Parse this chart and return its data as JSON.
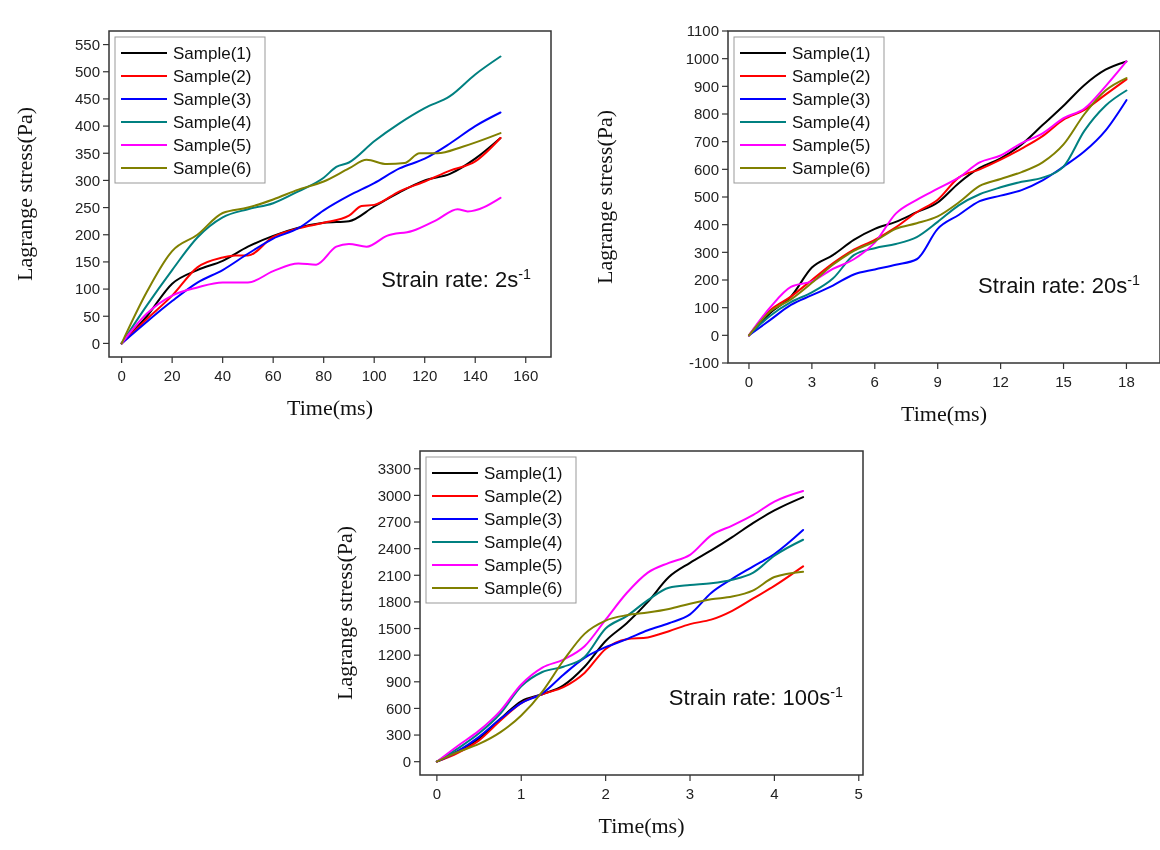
{
  "chart_data": [
    {
      "type": "line",
      "xlabel": "Time(ms)",
      "ylabel": "Lagrange stress(Pa)",
      "annotations": [
        "Strain rate: 2s$^{-1}$"
      ],
      "xlim": [
        -5,
        170
      ],
      "ylim": [
        -25,
        575
      ],
      "xticks": [
        0,
        20,
        40,
        60,
        80,
        100,
        120,
        140,
        160
      ],
      "yticks": [
        0,
        50,
        100,
        150,
        200,
        250,
        300,
        350,
        400,
        450,
        500,
        550
      ],
      "legend": "top left",
      "grid": false,
      "line_style": "solid",
      "marker": "none",
      "series": [
        {
          "name": "Sample(1)",
          "color": "#000000",
          "x": [
            0,
            10,
            20,
            30,
            40,
            50,
            60,
            70,
            80,
            90,
            100,
            110,
            120,
            130,
            140,
            150
          ],
          "values": [
            0,
            50,
            110,
            135,
            152,
            178,
            198,
            213,
            222,
            225,
            252,
            278,
            300,
            312,
            340,
            378
          ]
        },
        {
          "name": "Sample(2)",
          "color": "#ff0000",
          "x": [
            0,
            10,
            20,
            30,
            40,
            45,
            50,
            60,
            70,
            80,
            90,
            95,
            100,
            110,
            120,
            130,
            140,
            150
          ],
          "values": [
            0,
            45,
            88,
            140,
            158,
            162,
            162,
            196,
            212,
            222,
            235,
            253,
            255,
            280,
            298,
            318,
            335,
            378
          ]
        },
        {
          "name": "Sample(3)",
          "color": "#0000ff",
          "x": [
            0,
            10,
            20,
            30,
            40,
            50,
            60,
            70,
            80,
            90,
            100,
            110,
            120,
            130,
            140,
            150
          ],
          "values": [
            0,
            40,
            78,
            112,
            135,
            165,
            193,
            212,
            245,
            272,
            295,
            322,
            340,
            368,
            400,
            425
          ]
        },
        {
          "name": "Sample(4)",
          "color": "#008080",
          "x": [
            0,
            10,
            20,
            30,
            40,
            50,
            60,
            70,
            80,
            85,
            90,
            100,
            110,
            120,
            130,
            140,
            150
          ],
          "values": [
            0,
            70,
            135,
            195,
            232,
            247,
            258,
            280,
            305,
            325,
            333,
            372,
            405,
            433,
            455,
            495,
            528
          ]
        },
        {
          "name": "Sample(5)",
          "color": "#ff00ff",
          "x": [
            0,
            10,
            20,
            30,
            40,
            50,
            60,
            70,
            77,
            85,
            90,
            97,
            105,
            115,
            125,
            133,
            137,
            150
          ],
          "values": [
            0,
            55,
            88,
            103,
            112,
            112,
            133,
            147,
            145,
            178,
            183,
            178,
            198,
            207,
            228,
            247,
            243,
            268
          ]
        },
        {
          "name": "Sample(6)",
          "color": "#808000",
          "x": [
            0,
            10,
            20,
            30,
            40,
            50,
            60,
            70,
            80,
            90,
            97,
            105,
            112,
            118,
            125,
            135,
            150
          ],
          "values": [
            0,
            95,
            170,
            200,
            240,
            250,
            265,
            283,
            298,
            322,
            338,
            330,
            332,
            350,
            350,
            362,
            387
          ]
        }
      ]
    },
    {
      "type": "line",
      "xlabel": "Time(ms)",
      "ylabel": "Lagrange stress(Pa)",
      "annotations": [
        "Strain rate: 20s$^{-1}$"
      ],
      "xlim": [
        -1,
        19.6
      ],
      "ylim": [
        -100,
        1100
      ],
      "xticks": [
        0,
        3,
        6,
        9,
        12,
        15,
        18
      ],
      "yticks": [
        -100,
        0,
        100,
        200,
        300,
        400,
        500,
        600,
        700,
        800,
        900,
        1000,
        1100
      ],
      "legend": "top left",
      "grid": false,
      "line_style": "solid",
      "marker": "none",
      "series": [
        {
          "name": "Sample(1)",
          "color": "#000000",
          "x": [
            0,
            1,
            2,
            3,
            4,
            5,
            6,
            7,
            8,
            9,
            10,
            11,
            12,
            13,
            14,
            15,
            16,
            17,
            18
          ],
          "values": [
            0,
            80,
            140,
            245,
            290,
            345,
            385,
            410,
            445,
            480,
            550,
            605,
            640,
            690,
            760,
            830,
            905,
            960,
            990
          ]
        },
        {
          "name": "Sample(2)",
          "color": "#ff0000",
          "x": [
            0,
            1,
            2,
            3,
            4,
            5,
            6,
            7,
            8,
            9,
            10,
            11,
            12,
            13,
            14,
            15,
            16,
            17,
            18
          ],
          "values": [
            0,
            90,
            140,
            200,
            260,
            310,
            345,
            390,
            445,
            490,
            570,
            600,
            635,
            675,
            720,
            780,
            815,
            870,
            925
          ]
        },
        {
          "name": "Sample(3)",
          "color": "#0000ff",
          "x": [
            0,
            1,
            2,
            3,
            4,
            5,
            6,
            7,
            8,
            9,
            10,
            11,
            12,
            13,
            14,
            15,
            16,
            17,
            18
          ],
          "values": [
            0,
            55,
            110,
            145,
            180,
            220,
            238,
            255,
            275,
            385,
            435,
            485,
            505,
            525,
            560,
            610,
            665,
            740,
            850
          ]
        },
        {
          "name": "Sample(4)",
          "color": "#008080",
          "x": [
            0,
            1,
            2,
            3,
            4,
            5,
            6,
            7,
            8,
            9,
            10,
            11,
            12,
            13,
            14,
            15,
            16,
            17,
            18
          ],
          "values": [
            0,
            70,
            120,
            155,
            205,
            290,
            315,
            330,
            355,
            410,
            470,
            510,
            535,
            555,
            570,
            610,
            740,
            830,
            885
          ]
        },
        {
          "name": "Sample(5)",
          "color": "#ff00ff",
          "x": [
            0,
            1,
            2,
            3,
            4,
            5,
            6,
            7,
            8,
            9,
            10,
            11,
            12,
            13,
            14,
            15,
            16,
            17,
            18
          ],
          "values": [
            0,
            100,
            175,
            195,
            240,
            275,
            335,
            440,
            490,
            530,
            570,
            625,
            650,
            695,
            730,
            785,
            820,
            900,
            990
          ]
        },
        {
          "name": "Sample(6)",
          "color": "#808000",
          "x": [
            0,
            1,
            2,
            3,
            4,
            5,
            6,
            7,
            8,
            9,
            10,
            11,
            12,
            13,
            14,
            15,
            16,
            17,
            18
          ],
          "values": [
            0,
            85,
            130,
            190,
            255,
            305,
            340,
            385,
            405,
            430,
            480,
            540,
            565,
            590,
            625,
            690,
            800,
            885,
            930
          ]
        }
      ]
    },
    {
      "type": "line",
      "xlabel": "Time(ms)",
      "ylabel": "Lagrange stress(Pa)",
      "annotations": [
        "Strain rate: 100s$^{-1}$"
      ],
      "xlim": [
        -0.2,
        5.05
      ],
      "ylim": [
        -150,
        3500
      ],
      "xticks": [
        0,
        1,
        2,
        3,
        4,
        5
      ],
      "yticks": [
        0,
        300,
        600,
        900,
        1200,
        1500,
        1800,
        2100,
        2400,
        2700,
        3000,
        3300
      ],
      "legend": "top left",
      "grid": false,
      "line_style": "solid",
      "marker": "none",
      "series": [
        {
          "name": "Sample(1)",
          "color": "#000000",
          "x": [
            0,
            0.25,
            0.5,
            0.75,
            1,
            1.25,
            1.5,
            1.75,
            2,
            2.25,
            2.5,
            2.75,
            3,
            3.25,
            3.5,
            3.75,
            4,
            4.34
          ],
          "values": [
            0,
            120,
            260,
            480,
            680,
            760,
            860,
            1070,
            1360,
            1560,
            1800,
            2080,
            2240,
            2380,
            2530,
            2690,
            2830,
            2980
          ]
        },
        {
          "name": "Sample(2)",
          "color": "#ff0000",
          "x": [
            0,
            0.25,
            0.5,
            0.75,
            1,
            1.25,
            1.5,
            1.75,
            2,
            2.25,
            2.5,
            2.75,
            3,
            3.25,
            3.5,
            3.75,
            4,
            4.34
          ],
          "values": [
            0,
            100,
            240,
            460,
            660,
            760,
            840,
            1000,
            1270,
            1380,
            1400,
            1470,
            1550,
            1600,
            1700,
            1840,
            1980,
            2200
          ]
        },
        {
          "name": "Sample(3)",
          "color": "#0000ff",
          "x": [
            0,
            0.25,
            0.5,
            0.75,
            1,
            1.25,
            1.5,
            1.75,
            2,
            2.25,
            2.5,
            2.75,
            3,
            3.25,
            3.5,
            3.75,
            4,
            4.34
          ],
          "values": [
            0,
            120,
            280,
            480,
            660,
            770,
            980,
            1170,
            1290,
            1380,
            1480,
            1560,
            1660,
            1900,
            2060,
            2200,
            2340,
            2610
          ]
        },
        {
          "name": "Sample(4)",
          "color": "#008080",
          "x": [
            0,
            0.25,
            0.5,
            0.75,
            1,
            1.25,
            1.5,
            1.75,
            2,
            2.25,
            2.5,
            2.75,
            3,
            3.25,
            3.5,
            3.75,
            4,
            4.34
          ],
          "values": [
            0,
            150,
            320,
            540,
            850,
            1010,
            1070,
            1180,
            1500,
            1640,
            1820,
            1960,
            1990,
            2010,
            2050,
            2130,
            2320,
            2500
          ]
        },
        {
          "name": "Sample(5)",
          "color": "#ff00ff",
          "x": [
            0,
            0.25,
            0.5,
            0.75,
            1,
            1.25,
            1.5,
            1.75,
            2,
            2.25,
            2.5,
            2.75,
            3,
            3.25,
            3.5,
            3.75,
            4,
            4.34
          ],
          "values": [
            0,
            180,
            350,
            570,
            870,
            1060,
            1150,
            1300,
            1600,
            1900,
            2130,
            2240,
            2330,
            2550,
            2660,
            2780,
            2930,
            3050
          ]
        },
        {
          "name": "Sample(6)",
          "color": "#808000",
          "x": [
            0,
            0.25,
            0.5,
            0.75,
            1,
            1.25,
            1.5,
            1.75,
            2,
            2.25,
            2.5,
            2.75,
            3,
            3.25,
            3.5,
            3.75,
            4,
            4.34
          ],
          "values": [
            0,
            110,
            200,
            330,
            520,
            790,
            1140,
            1440,
            1590,
            1650,
            1680,
            1720,
            1780,
            1830,
            1860,
            1930,
            2080,
            2140
          ]
        }
      ]
    }
  ]
}
